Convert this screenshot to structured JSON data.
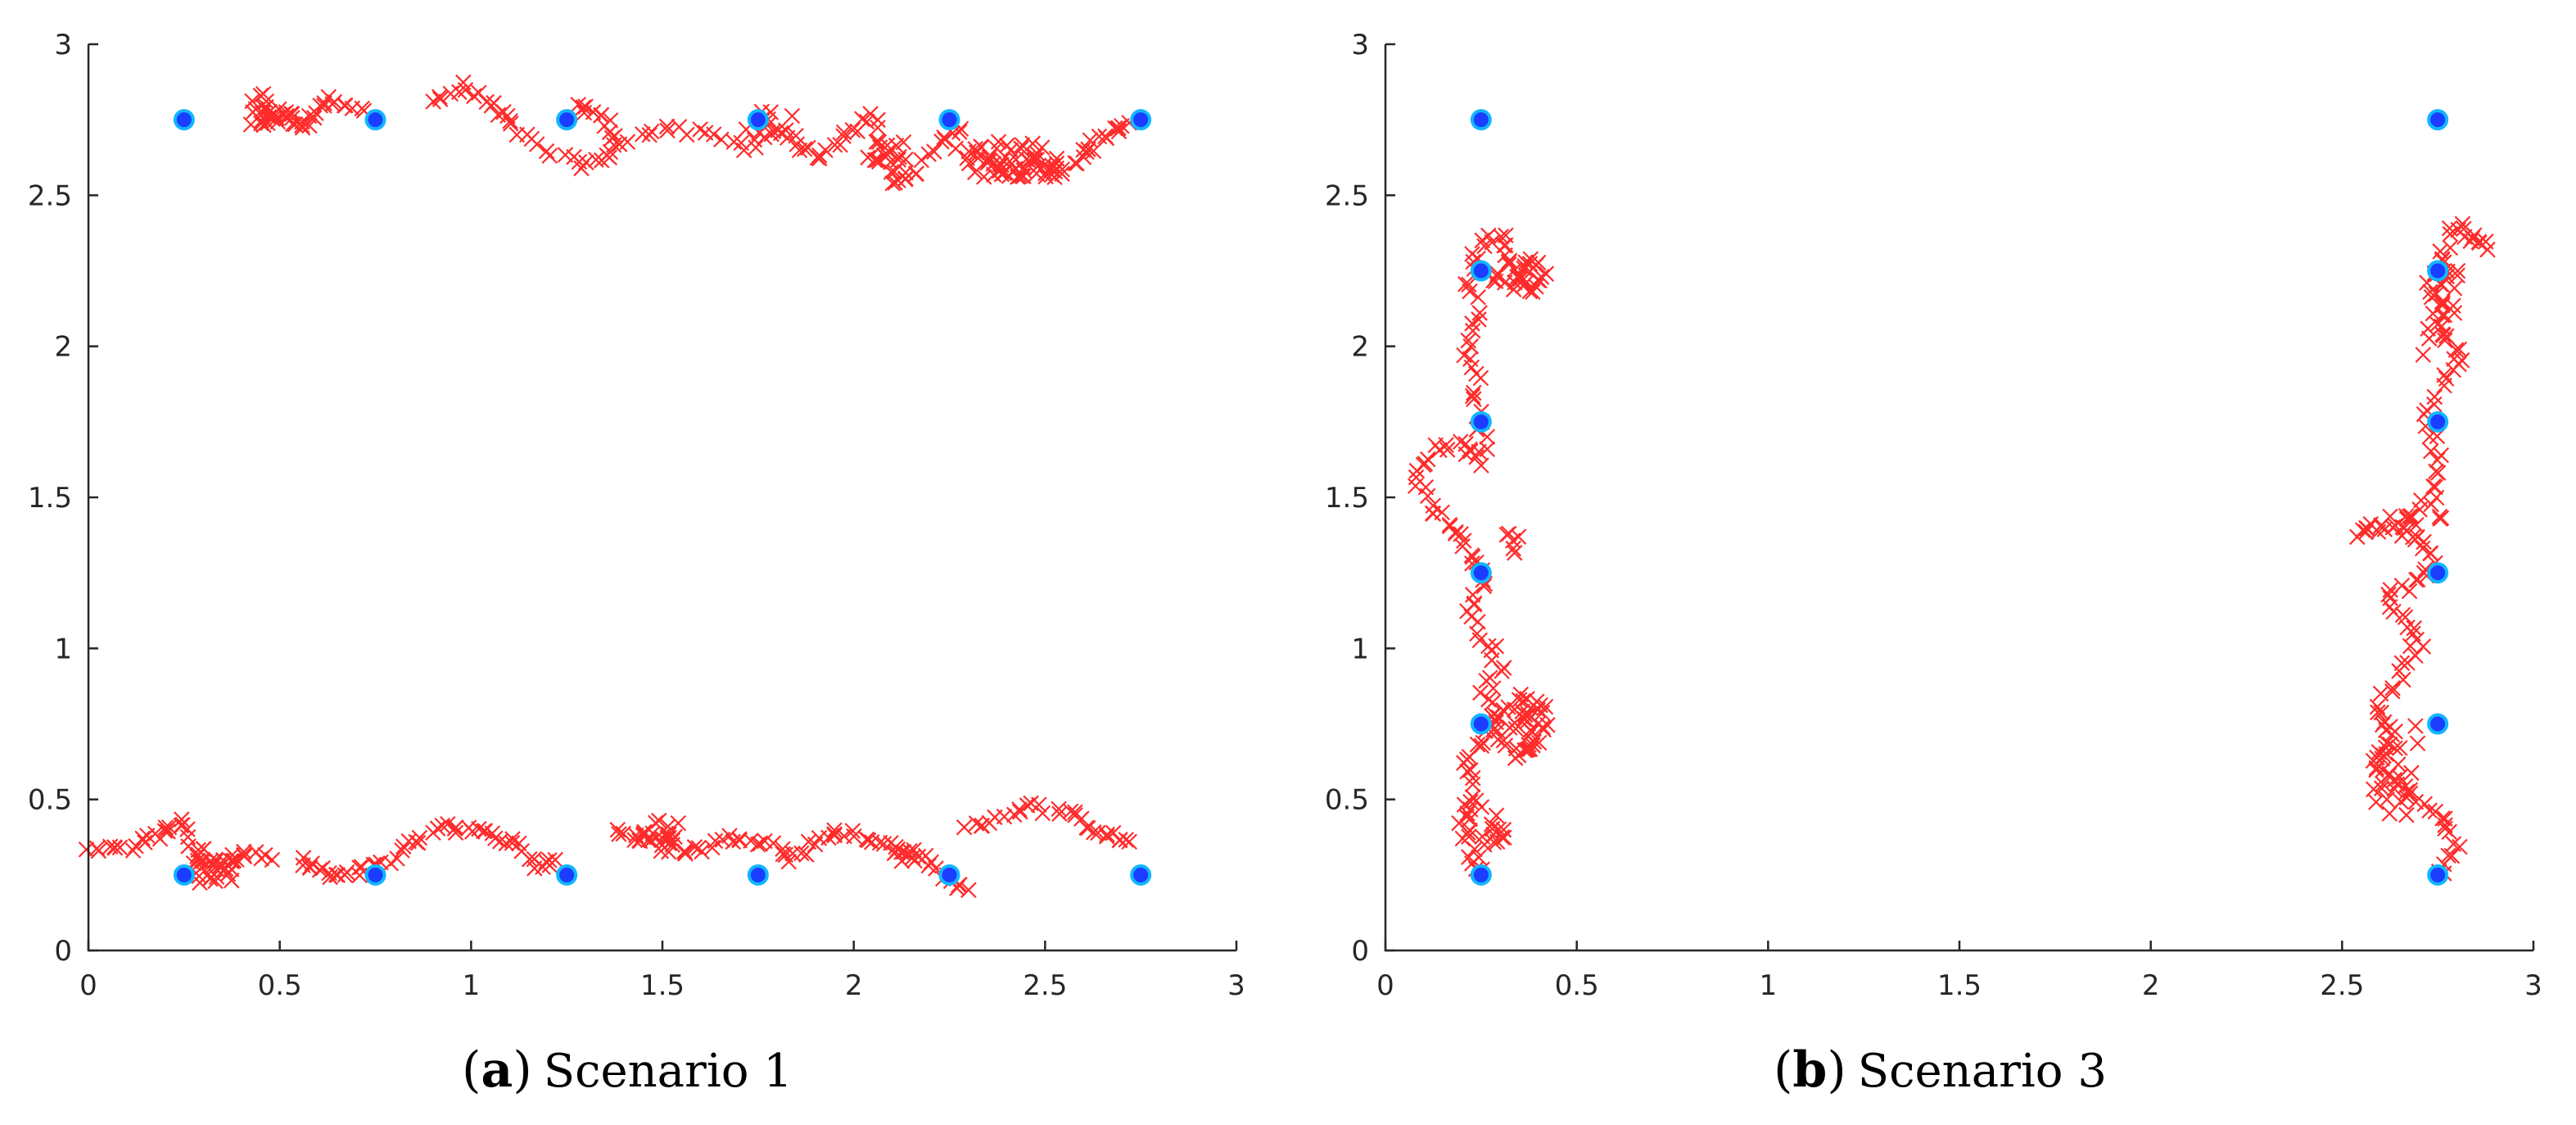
{
  "figure": {
    "panels": [
      {
        "label": "a",
        "caption": "Scenario 1"
      },
      {
        "label": "b",
        "caption": "Scenario 3"
      }
    ]
  },
  "colors": {
    "trajectory": "#ff2b2b",
    "anchor_fill": "#1a3dff",
    "anchor_edge": "#12b6ff",
    "axes": "#262626"
  },
  "chart_data": [
    {
      "type": "scatter",
      "title": "",
      "caption": "Scenario 1",
      "xlabel": "",
      "ylabel": "",
      "xlim": [
        0,
        3
      ],
      "ylim": [
        0,
        3
      ],
      "xticks": [
        "0",
        "0.5",
        "1",
        "1.5",
        "2",
        "2.5",
        "3"
      ],
      "yticks": [
        "0",
        "0.5",
        "1",
        "1.5",
        "2",
        "2.5",
        "3"
      ],
      "series": [
        {
          "name": "anchors",
          "marker": "circle",
          "points": [
            [
              0.25,
              2.75
            ],
            [
              0.75,
              2.75
            ],
            [
              1.25,
              2.75
            ],
            [
              1.75,
              2.75
            ],
            [
              2.25,
              2.75
            ],
            [
              2.75,
              2.75
            ],
            [
              0.25,
              0.25
            ],
            [
              0.75,
              0.25
            ],
            [
              1.25,
              0.25
            ],
            [
              1.75,
              0.25
            ],
            [
              2.25,
              0.25
            ],
            [
              2.75,
              0.25
            ]
          ]
        },
        {
          "name": "trajectory",
          "marker": "x",
          "paths": [
            [
              [
                0.42,
                2.74
              ],
              [
                0.45,
                2.84
              ],
              [
                0.48,
                2.74
              ],
              [
                0.52,
                2.78
              ],
              [
                0.56,
                2.72
              ],
              [
                0.6,
                2.8
              ],
              [
                0.65,
                2.82
              ],
              [
                0.72,
                2.78
              ]
            ],
            [
              [
                0.9,
                2.8
              ],
              [
                0.98,
                2.86
              ],
              [
                1.05,
                2.8
              ],
              [
                1.1,
                2.74
              ],
              [
                1.18,
                2.66
              ],
              [
                1.28,
                2.6
              ],
              [
                1.35,
                2.62
              ],
              [
                1.38,
                2.7
              ],
              [
                1.33,
                2.77
              ],
              [
                1.28,
                2.8
              ]
            ],
            [
              [
                1.4,
                2.68
              ],
              [
                1.5,
                2.72
              ],
              [
                1.62,
                2.7
              ],
              [
                1.72,
                2.66
              ],
              [
                1.8,
                2.72
              ],
              [
                1.86,
                2.66
              ],
              [
                1.92,
                2.62
              ],
              [
                1.98,
                2.7
              ],
              [
                2.05,
                2.76
              ],
              [
                2.08,
                2.64
              ],
              [
                2.1,
                2.55
              ],
              [
                2.16,
                2.56
              ],
              [
                2.22,
                2.68
              ],
              [
                2.28,
                2.72
              ]
            ],
            [
              [
                2.28,
                2.64
              ],
              [
                2.34,
                2.62
              ],
              [
                2.4,
                2.58
              ],
              [
                2.46,
                2.62
              ],
              [
                2.52,
                2.56
              ],
              [
                2.58,
                2.62
              ],
              [
                2.62,
                2.66
              ],
              [
                2.68,
                2.72
              ],
              [
                2.72,
                2.74
              ]
            ]
          ],
          "scatter_clusters": [
            {
              "center": [
                0.5,
                2.76
              ],
              "spread": [
                0.05,
                0.03
              ],
              "count": 14
            },
            {
              "center": [
                1.78,
                2.74
              ],
              "spread": [
                0.07,
                0.04
              ],
              "count": 10
            },
            {
              "center": [
                2.08,
                2.62
              ],
              "spread": [
                0.06,
                0.06
              ],
              "count": 14
            },
            {
              "center": [
                2.42,
                2.62
              ],
              "spread": [
                0.12,
                0.06
              ],
              "count": 40
            }
          ]
        },
        {
          "name": "trajectory",
          "marker": "x",
          "paths": [
            [
              [
                0.0,
                0.34
              ],
              [
                0.08,
                0.33
              ],
              [
                0.15,
                0.36
              ],
              [
                0.2,
                0.4
              ],
              [
                0.25,
                0.43
              ],
              [
                0.28,
                0.3
              ],
              [
                0.32,
                0.22
              ],
              [
                0.36,
                0.28
              ],
              [
                0.4,
                0.32
              ],
              [
                0.48,
                0.3
              ]
            ],
            [
              [
                0.55,
                0.3
              ],
              [
                0.6,
                0.26
              ],
              [
                0.66,
                0.25
              ],
              [
                0.72,
                0.27
              ],
              [
                0.78,
                0.3
              ],
              [
                0.85,
                0.36
              ],
              [
                0.92,
                0.42
              ],
              [
                0.98,
                0.4
              ],
              [
                1.05,
                0.38
              ],
              [
                1.12,
                0.36
              ],
              [
                1.18,
                0.28
              ],
              [
                1.22,
                0.3
              ]
            ],
            [
              [
                1.38,
                0.4
              ],
              [
                1.44,
                0.36
              ],
              [
                1.5,
                0.38
              ],
              [
                1.56,
                0.32
              ],
              [
                1.62,
                0.35
              ],
              [
                1.7,
                0.38
              ],
              [
                1.78,
                0.36
              ],
              [
                1.84,
                0.3
              ],
              [
                1.9,
                0.36
              ],
              [
                1.96,
                0.4
              ],
              [
                2.04,
                0.36
              ],
              [
                2.12,
                0.34
              ],
              [
                2.18,
                0.3
              ],
              [
                2.24,
                0.24
              ],
              [
                2.3,
                0.2
              ]
            ],
            [
              [
                2.3,
                0.4
              ],
              [
                2.38,
                0.44
              ],
              [
                2.46,
                0.48
              ],
              [
                2.54,
                0.46
              ],
              [
                2.6,
                0.42
              ],
              [
                2.66,
                0.38
              ],
              [
                2.72,
                0.36
              ]
            ]
          ],
          "scatter_clusters": [
            {
              "center": [
                0.33,
                0.28
              ],
              "spread": [
                0.05,
                0.06
              ],
              "count": 18
            },
            {
              "center": [
                1.5,
                0.38
              ],
              "spread": [
                0.05,
                0.06
              ],
              "count": 16
            },
            {
              "center": [
                2.12,
                0.32
              ],
              "spread": [
                0.04,
                0.04
              ],
              "count": 8
            }
          ]
        }
      ]
    },
    {
      "type": "scatter",
      "title": "",
      "caption": "Scenario 3",
      "xlabel": "",
      "ylabel": "",
      "xlim": [
        0,
        3
      ],
      "ylim": [
        0,
        3
      ],
      "xticks": [
        "0",
        "0.5",
        "1",
        "1.5",
        "2",
        "2.5",
        "3"
      ],
      "yticks": [
        "0",
        "0.5",
        "1",
        "1.5",
        "2",
        "2.5",
        "3"
      ],
      "series": [
        {
          "name": "anchors",
          "marker": "circle",
          "points": [
            [
              0.25,
              0.25
            ],
            [
              0.25,
              0.75
            ],
            [
              0.25,
              1.25
            ],
            [
              0.25,
              1.75
            ],
            [
              0.25,
              2.25
            ],
            [
              0.25,
              2.75
            ],
            [
              2.75,
              0.25
            ],
            [
              2.75,
              0.75
            ],
            [
              2.75,
              1.25
            ],
            [
              2.75,
              1.75
            ],
            [
              2.75,
              2.25
            ],
            [
              2.75,
              2.75
            ]
          ]
        },
        {
          "name": "trajectory",
          "marker": "x",
          "paths": [
            [
              [
                0.25,
                0.26
              ],
              [
                0.22,
                0.34
              ],
              [
                0.2,
                0.44
              ],
              [
                0.24,
                0.52
              ],
              [
                0.22,
                0.62
              ],
              [
                0.25,
                0.7
              ],
              [
                0.3,
                0.78
              ],
              [
                0.36,
                0.84
              ],
              [
                0.42,
                0.8
              ],
              [
                0.4,
                0.7
              ],
              [
                0.34,
                0.64
              ],
              [
                0.28,
                0.74
              ],
              [
                0.26,
                0.86
              ],
              [
                0.3,
                0.94
              ],
              [
                0.26,
                1.04
              ],
              [
                0.22,
                1.14
              ],
              [
                0.26,
                1.24
              ],
              [
                0.22,
                1.32
              ],
              [
                0.18,
                1.4
              ],
              [
                0.12,
                1.46
              ],
              [
                0.08,
                1.56
              ],
              [
                0.12,
                1.66
              ],
              [
                0.2,
                1.68
              ],
              [
                0.26,
                1.62
              ],
              [
                0.25,
                1.74
              ],
              [
                0.24,
                1.86
              ],
              [
                0.22,
                1.98
              ],
              [
                0.24,
                2.1
              ],
              [
                0.22,
                2.22
              ],
              [
                0.24,
                2.34
              ],
              [
                0.3,
                2.36
              ],
              [
                0.34,
                2.26
              ],
              [
                0.38,
                2.18
              ],
              [
                0.42,
                2.24
              ]
            ]
          ],
          "scatter_clusters": [
            {
              "center": [
                0.26,
                0.42
              ],
              "spread": [
                0.05,
                0.07
              ],
              "count": 16
            },
            {
              "center": [
                0.34,
                0.74
              ],
              "spread": [
                0.06,
                0.08
              ],
              "count": 22
            },
            {
              "center": [
                0.34,
                2.24
              ],
              "spread": [
                0.06,
                0.06
              ],
              "count": 20
            },
            {
              "center": [
                0.33,
                1.34
              ],
              "spread": [
                0.03,
                0.05
              ],
              "count": 6
            }
          ]
        },
        {
          "name": "trajectory",
          "marker": "x",
          "paths": [
            [
              [
                2.76,
                0.26
              ],
              [
                2.8,
                0.34
              ],
              [
                2.76,
                0.44
              ],
              [
                2.7,
                0.5
              ],
              [
                2.64,
                0.56
              ],
              [
                2.6,
                0.64
              ],
              [
                2.62,
                0.72
              ],
              [
                2.6,
                0.82
              ],
              [
                2.66,
                0.92
              ],
              [
                2.7,
                1.02
              ],
              [
                2.66,
                1.1
              ],
              [
                2.62,
                1.18
              ],
              [
                2.7,
                1.22
              ],
              [
                2.74,
                1.3
              ],
              [
                2.68,
                1.38
              ],
              [
                2.6,
                1.4
              ],
              [
                2.54,
                1.38
              ],
              [
                2.66,
                1.44
              ],
              [
                2.74,
                1.5
              ],
              [
                2.76,
                1.62
              ],
              [
                2.72,
                1.74
              ],
              [
                2.76,
                1.86
              ],
              [
                2.8,
                1.96
              ],
              [
                2.76,
                2.06
              ],
              [
                2.74,
                2.18
              ],
              [
                2.76,
                2.3
              ],
              [
                2.8,
                2.4
              ],
              [
                2.84,
                2.36
              ],
              [
                2.88,
                2.32
              ]
            ]
          ],
          "scatter_clusters": [
            {
              "center": [
                2.64,
                0.6
              ],
              "spread": [
                0.06,
                0.16
              ],
              "count": 26
            },
            {
              "center": [
                2.76,
                2.12
              ],
              "spread": [
                0.05,
                0.18
              ],
              "count": 22
            },
            {
              "center": [
                2.7,
                1.4
              ],
              "spread": [
                0.07,
                0.05
              ],
              "count": 10
            }
          ]
        }
      ]
    }
  ]
}
